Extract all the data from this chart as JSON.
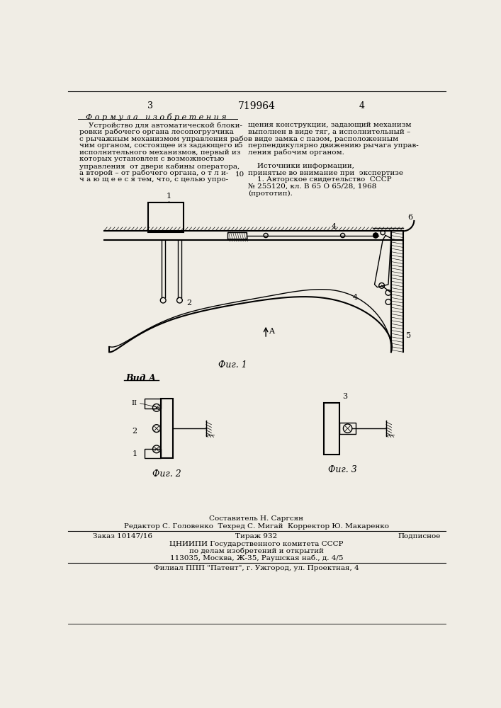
{
  "page_color": "#f0ede5",
  "title_header": "719964",
  "page_left": "3",
  "page_right": "4",
  "formula_title": "Ф о р м у л а   и з о б р е т е н и я",
  "formula_text_left": [
    "    Устройство для автоматической блоки-",
    "ровки рабочего органа лесопогрузчика",
    "с рычажным механизмом управления рабо-",
    "чим органом, состоящее из задающего и",
    "исполнительного механизмов, первый из",
    "которых установлен с возможностью",
    "управления  от двери кабины оператора,",
    "а второй – от рабочего органа, о т л и-",
    "ч а ю щ е е с я тем, что, с целью упро-"
  ],
  "formula_lineno": "5",
  "formula_lineno2": "10",
  "formula_text_right": [
    "щения конструкции, задающий механизм",
    "выполнен в виде тяг, а исполнительный –",
    "в виде замка с пазом, расположенным",
    "перпендикулярно движению рычага упрaв-",
    "ления рабочим органом."
  ],
  "sources_title": "    Источники информации,",
  "sources_subtitle": "принятые во внимание при  экспертизе",
  "sources_text": [
    "    1. Авторское свидетельство  СССР",
    "№ 255120, кл. В 65 О 65/28, 1968",
    "(прототип)."
  ],
  "fig1_caption": "Фиг. 1",
  "fig2_caption": "Фиг. 2",
  "fig3_caption": "Фиг. 3",
  "vidA_label": "Вид А",
  "footer_composer": "Составитель Н. Саргсян",
  "footer_editor": "Редактор С. Головенко  Техред С. Мигай  Корректор Ю. Макаренко",
  "footer_order": "Заказ 10147/16",
  "footer_tirazh": "Тираж 932",
  "footer_podp": "Подписное",
  "footer_org": "ЦНИИПИ Государственного комитета СССР",
  "footer_org2": "по делам изобретений и открытий",
  "footer_addr": "113035, Москва, Ж-35, Раушская наб., д. 4/5",
  "footer_filial": "Филиал ППП \"Патент\", г. Ужгород, ул. Проектная, 4"
}
